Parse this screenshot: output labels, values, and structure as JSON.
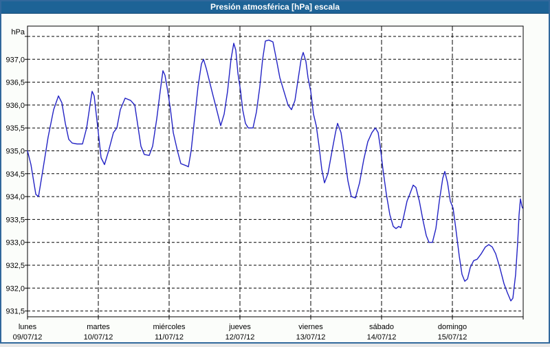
{
  "window": {
    "title": "Presión atmosférica [hPa] escala"
  },
  "colors": {
    "frame": "#31689c",
    "titlebar_bg": "#1d6396",
    "titlebar_edge": "#124a73",
    "title_text": "#ffffff",
    "page_bg": "#fbfdfa",
    "plot_bg": "#ffffff",
    "grid": "#000000",
    "axis": "#000000",
    "label_text": "#000000",
    "curve": "#2222c4"
  },
  "chart_data": {
    "type": "line",
    "title": "Presión atmosférica [hPa] escala",
    "y_unit": "hPa",
    "ylabel": "hPa",
    "xlabel": "",
    "grid": "dashed",
    "legend": "none",
    "ylim": [
      931.38,
      937.72
    ],
    "xlim_days": [
      0,
      7
    ],
    "y_gridlines": [
      937.5,
      937.0,
      936.5,
      936.0,
      935.5,
      935.0,
      934.5,
      934.0,
      933.5,
      933.0,
      932.5,
      932.0,
      931.5
    ],
    "y_tick_labels": [
      "937,0",
      "936,5",
      "936,0",
      "935,5",
      "935,0",
      "934,5",
      "934,0",
      "933,5",
      "933,0",
      "932,5",
      "932,0",
      "931,5"
    ],
    "y_tick_values": [
      937.0,
      936.5,
      936.0,
      935.5,
      935.0,
      934.5,
      934.0,
      933.5,
      933.0,
      932.5,
      932.0,
      931.5
    ],
    "days": [
      {
        "name": "lunes",
        "date": "09/07/12"
      },
      {
        "name": "martes",
        "date": "10/07/12"
      },
      {
        "name": "miércoles",
        "date": "11/07/12"
      },
      {
        "name": "jueves",
        "date": "12/07/12"
      },
      {
        "name": "viernes",
        "date": "13/07/12"
      },
      {
        "name": "sábado",
        "date": "14/07/12"
      },
      {
        "name": "domingo",
        "date": "15/07/12"
      }
    ],
    "series": [
      {
        "name": "Presión atmosférica [hPa]",
        "color": "#2222c4",
        "points": [
          [
            0.0,
            935.0
          ],
          [
            0.049,
            934.7
          ],
          [
            0.117,
            934.05
          ],
          [
            0.155,
            934.0
          ],
          [
            0.214,
            934.55
          ],
          [
            0.291,
            935.3
          ],
          [
            0.369,
            935.9
          ],
          [
            0.437,
            936.2
          ],
          [
            0.485,
            936.05
          ],
          [
            0.534,
            935.6
          ],
          [
            0.583,
            935.25
          ],
          [
            0.631,
            935.17
          ],
          [
            0.699,
            935.15
          ],
          [
            0.777,
            935.15
          ],
          [
            0.835,
            935.5
          ],
          [
            0.883,
            936.0
          ],
          [
            0.913,
            936.3
          ],
          [
            0.942,
            936.2
          ],
          [
            0.971,
            935.8
          ],
          [
            1.0,
            935.4
          ],
          [
            1.039,
            934.85
          ],
          [
            1.087,
            934.7
          ],
          [
            1.146,
            935.0
          ],
          [
            1.214,
            935.4
          ],
          [
            1.262,
            935.5
          ],
          [
            1.311,
            935.9
          ],
          [
            1.379,
            936.15
          ],
          [
            1.456,
            936.1
          ],
          [
            1.515,
            936.0
          ],
          [
            1.553,
            935.6
          ],
          [
            1.602,
            935.1
          ],
          [
            1.65,
            934.92
          ],
          [
            1.718,
            934.9
          ],
          [
            1.767,
            935.1
          ],
          [
            1.825,
            935.7
          ],
          [
            1.874,
            936.3
          ],
          [
            1.913,
            936.75
          ],
          [
            1.942,
            936.65
          ],
          [
            1.981,
            936.3
          ],
          [
            2.019,
            935.9
          ],
          [
            2.058,
            935.4
          ],
          [
            2.117,
            935.0
          ],
          [
            2.165,
            934.72
          ],
          [
            2.233,
            934.68
          ],
          [
            2.272,
            934.65
          ],
          [
            2.311,
            935.0
          ],
          [
            2.359,
            935.7
          ],
          [
            2.408,
            936.4
          ],
          [
            2.456,
            936.9
          ],
          [
            2.485,
            937.0
          ],
          [
            2.524,
            936.8
          ],
          [
            2.573,
            936.5
          ],
          [
            2.621,
            936.2
          ],
          [
            2.68,
            935.85
          ],
          [
            2.728,
            935.55
          ],
          [
            2.777,
            935.8
          ],
          [
            2.825,
            936.3
          ],
          [
            2.874,
            937.0
          ],
          [
            2.913,
            937.35
          ],
          [
            2.942,
            937.2
          ],
          [
            2.971,
            936.7
          ],
          [
            3.01,
            936.3
          ],
          [
            3.039,
            935.9
          ],
          [
            3.078,
            935.6
          ],
          [
            3.117,
            935.5
          ],
          [
            3.184,
            935.5
          ],
          [
            3.233,
            935.85
          ],
          [
            3.281,
            936.4
          ],
          [
            3.32,
            937.0
          ],
          [
            3.359,
            937.4
          ],
          [
            3.408,
            937.42
          ],
          [
            3.466,
            937.38
          ],
          [
            3.515,
            937.0
          ],
          [
            3.563,
            936.6
          ],
          [
            3.621,
            936.3
          ],
          [
            3.68,
            936.0
          ],
          [
            3.728,
            935.9
          ],
          [
            3.777,
            936.1
          ],
          [
            3.825,
            936.6
          ],
          [
            3.864,
            937.0
          ],
          [
            3.893,
            937.15
          ],
          [
            3.932,
            936.95
          ],
          [
            3.961,
            936.6
          ],
          [
            4.0,
            936.3
          ],
          [
            4.039,
            935.8
          ],
          [
            4.078,
            935.55
          ],
          [
            4.117,
            935.1
          ],
          [
            4.155,
            934.6
          ],
          [
            4.194,
            934.3
          ],
          [
            4.243,
            934.5
          ],
          [
            4.301,
            935.0
          ],
          [
            4.35,
            935.4
          ],
          [
            4.379,
            935.6
          ],
          [
            4.427,
            935.4
          ],
          [
            4.476,
            934.9
          ],
          [
            4.524,
            934.35
          ],
          [
            4.573,
            934.0
          ],
          [
            4.631,
            933.97
          ],
          [
            4.689,
            934.3
          ],
          [
            4.748,
            934.8
          ],
          [
            4.806,
            935.2
          ],
          [
            4.864,
            935.4
          ],
          [
            4.913,
            935.5
          ],
          [
            4.951,
            935.4
          ],
          [
            4.981,
            935.1
          ],
          [
            5.019,
            934.6
          ],
          [
            5.068,
            934.05
          ],
          [
            5.117,
            933.6
          ],
          [
            5.165,
            933.35
          ],
          [
            5.204,
            933.3
          ],
          [
            5.243,
            933.35
          ],
          [
            5.272,
            933.32
          ],
          [
            5.311,
            933.55
          ],
          [
            5.359,
            933.9
          ],
          [
            5.398,
            934.05
          ],
          [
            5.447,
            934.25
          ],
          [
            5.485,
            934.2
          ],
          [
            5.534,
            933.9
          ],
          [
            5.583,
            933.5
          ],
          [
            5.631,
            933.15
          ],
          [
            5.67,
            933.0
          ],
          [
            5.718,
            933.0
          ],
          [
            5.767,
            933.3
          ],
          [
            5.816,
            933.9
          ],
          [
            5.864,
            934.4
          ],
          [
            5.893,
            934.55
          ],
          [
            5.932,
            934.3
          ],
          [
            5.971,
            933.9
          ],
          [
            6.01,
            933.75
          ],
          [
            6.049,
            933.3
          ],
          [
            6.097,
            932.7
          ],
          [
            6.136,
            932.3
          ],
          [
            6.175,
            932.15
          ],
          [
            6.214,
            932.2
          ],
          [
            6.252,
            932.45
          ],
          [
            6.301,
            932.6
          ],
          [
            6.35,
            932.63
          ],
          [
            6.408,
            932.75
          ],
          [
            6.466,
            932.9
          ],
          [
            6.515,
            932.95
          ],
          [
            6.563,
            932.9
          ],
          [
            6.612,
            932.75
          ],
          [
            6.67,
            932.45
          ],
          [
            6.728,
            932.1
          ],
          [
            6.777,
            931.9
          ],
          [
            6.825,
            931.72
          ],
          [
            6.854,
            931.78
          ],
          [
            6.893,
            932.3
          ],
          [
            6.922,
            933.0
          ],
          [
            6.942,
            933.6
          ],
          [
            6.961,
            933.95
          ],
          [
            6.981,
            933.8
          ],
          [
            6.99,
            933.75
          ]
        ]
      }
    ]
  }
}
